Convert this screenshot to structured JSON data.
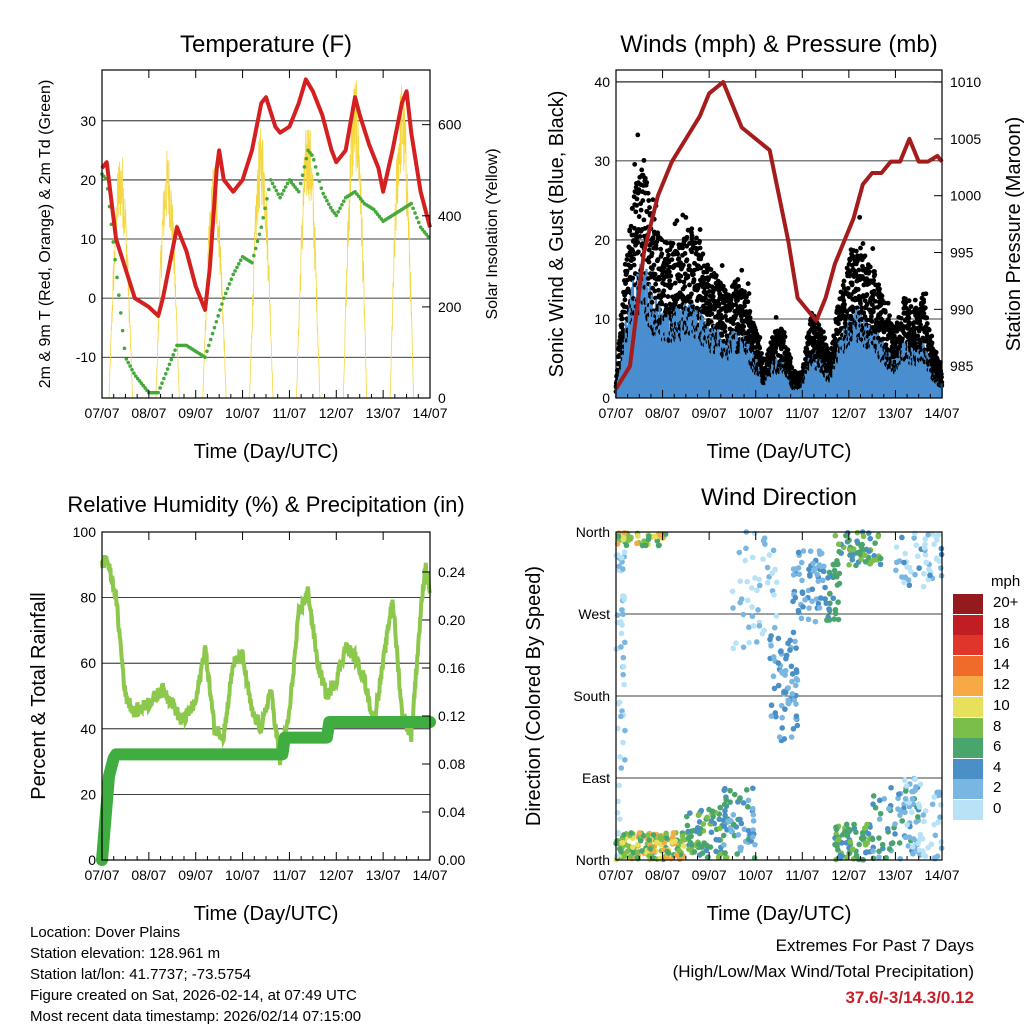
{
  "footer": {
    "location": "Location: Dover Plains",
    "elevation": "Station elevation: 128.961 m",
    "latlon": "Station lat/lon: 41.7737; -73.5754",
    "created": "Figure created on Sat, 2026-02-14, at 07:49 UTC",
    "recent": "Most recent data timestamp: 2026/02/14 07:15:00"
  },
  "extremes": {
    "title": "Extremes For Past 7 Days",
    "subtitle": "(High/Low/Max Wind/Total Precipitation)",
    "value": "37.6/-3/14.3/0.12"
  },
  "legend": {
    "unit": "mph",
    "colors": [
      "#951a1d",
      "#c01e23",
      "#e0352b",
      "#f06a2a",
      "#f7a945",
      "#e6e05a",
      "#7bbf4a",
      "#4aa56c",
      "#4a8fc6",
      "#7ab6e2",
      "#b8e2f6"
    ],
    "labels": [
      "20+",
      "18",
      "16",
      "14",
      "12",
      "10",
      "8",
      "6",
      "4",
      "2",
      "0"
    ]
  },
  "chart_data": [
    {
      "type": "line",
      "title": "Temperature (F)",
      "xlabel": "Time (Day/UTC)",
      "ylabel": "2m & 9m T (Red, Orange) & 2m Td (Green)",
      "y2label": "Solar Insolation (Yellow)",
      "xticks": [
        "07/07",
        "08/07",
        "09/07",
        "10/07",
        "11/07",
        "12/07",
        "13/07",
        "14/07"
      ],
      "ylim": [
        -16.9,
        38.6
      ],
      "yticks": [
        -10,
        0,
        10,
        20,
        30
      ],
      "y2lim": [
        0,
        720
      ],
      "y2ticks": [
        0,
        200,
        400,
        600
      ],
      "series": [
        {
          "name": "2m T",
          "color": "#d42020",
          "x": [
            0,
            0.1,
            0.3,
            0.5,
            0.7,
            1,
            1.2,
            1.3,
            1.5,
            1.6,
            1.8,
            2,
            2.1,
            2.2,
            2.3,
            2.45,
            2.5,
            2.6,
            2.8,
            3,
            3.2,
            3.4,
            3.5,
            3.7,
            3.8,
            4,
            4.2,
            4.35,
            4.5,
            4.7,
            4.9,
            5,
            5.2,
            5.4,
            5.5,
            5.7,
            5.9,
            6,
            6.2,
            6.4,
            6.5,
            6.6,
            6.8,
            7
          ],
          "y": [
            22,
            23,
            10,
            5,
            0,
            -1.5,
            -3,
            0,
            8,
            12,
            8,
            2,
            0,
            -2,
            5,
            22,
            25,
            20,
            18,
            20,
            25,
            33,
            34,
            29,
            28,
            29,
            33,
            37,
            35,
            31,
            25,
            23,
            25,
            34,
            31,
            26,
            22,
            18,
            25,
            33,
            35,
            28,
            18,
            12
          ]
        },
        {
          "name": "2m Td",
          "color": "#44a83a",
          "x": [
            0,
            0.1,
            0.3,
            0.5,
            0.7,
            1,
            1.2,
            1.4,
            1.6,
            1.8,
            2,
            2.2,
            2.4,
            2.6,
            2.8,
            3,
            3.2,
            3.4,
            3.6,
            3.8,
            4,
            4.2,
            4.4,
            4.5,
            4.7,
            4.9,
            5,
            5.2,
            5.4,
            5.6,
            5.8,
            6,
            6.2,
            6.4,
            6.6,
            6.8,
            7
          ],
          "y": [
            21,
            20,
            5,
            -10,
            -13,
            -16,
            -16,
            -12,
            -8,
            -8,
            -9,
            -10,
            -5,
            0,
            4,
            7,
            6,
            12,
            20,
            17,
            20,
            18,
            25,
            24,
            18,
            15,
            14,
            17,
            18,
            16,
            15,
            13,
            14,
            15,
            16,
            12,
            10
          ]
        },
        {
          "name": "Solar Insolation",
          "color": "#f5d742",
          "peak_day_fraction": 0.4,
          "daily_peaks": [
            550,
            550,
            520,
            600,
            620,
            710,
            700
          ]
        }
      ]
    },
    {
      "type": "scatter",
      "title": "Winds (mph) & Pressure (mb)",
      "xlabel": "Time (Day/UTC)",
      "ylabel": "Sonic Wind & Gust (Blue, Black)",
      "y2label": "Station Pressure (Maroon)",
      "xticks": [
        "07/07",
        "08/07",
        "09/07",
        "10/07",
        "11/07",
        "12/07",
        "13/07",
        "14/07"
      ],
      "ylim": [
        0,
        41.5
      ],
      "yticks": [
        0,
        10,
        20,
        30,
        40
      ],
      "y2lim": [
        982.2,
        1011.06
      ],
      "y2ticks": [
        985,
        990,
        995,
        1000,
        1005,
        1010
      ],
      "series": [
        {
          "name": "Gust",
          "color": "#000000",
          "x": [
            0,
            0.2,
            0.4,
            0.6,
            0.8,
            1,
            1.2,
            1.4,
            1.6,
            1.8,
            2,
            2.2,
            2.4,
            2.6,
            2.8,
            3,
            3.2,
            3.4,
            3.6,
            3.8,
            4,
            4.2,
            4.4,
            4.6,
            4.8,
            5,
            5.2,
            5.4,
            5.6,
            5.8,
            6,
            6.2,
            6.4,
            6.6,
            6.8,
            7
          ],
          "y": [
            2,
            15,
            25,
            28,
            20,
            18,
            18,
            18,
            20,
            18,
            15,
            14,
            12,
            14,
            12,
            8,
            4,
            8,
            8,
            3,
            3,
            10,
            8,
            5,
            12,
            16,
            18,
            16,
            14,
            10,
            8,
            12,
            10,
            12,
            6,
            3
          ]
        },
        {
          "name": "Sonic Wind",
          "color": "#4a8fd0",
          "ratio_to_gust": 0.5
        },
        {
          "name": "Station Pressure",
          "color": "#a51c1c",
          "x": [
            0,
            0.3,
            0.6,
            0.9,
            1.2,
            1.5,
            1.8,
            2,
            2.3,
            2.5,
            2.7,
            3,
            3.3,
            3.5,
            3.7,
            3.9,
            4.1,
            4.3,
            4.5,
            4.7,
            4.9,
            5.1,
            5.3,
            5.5,
            5.7,
            5.9,
            6.1,
            6.3,
            6.5,
            6.7,
            6.9,
            7
          ],
          "y": [
            983,
            985,
            995,
            1000,
            1003,
            1005,
            1007,
            1009,
            1010,
            1008,
            1006,
            1005,
            1004,
            1000,
            996,
            991,
            990,
            989,
            991,
            994,
            996,
            998,
            1001,
            1002,
            1002,
            1003,
            1003,
            1005,
            1003,
            1003,
            1003.5,
            1003
          ]
        }
      ]
    },
    {
      "type": "line",
      "title": "Relative Humidity (%) & Precipitation (in)",
      "xlabel": "Time (Day/UTC)",
      "ylabel": "Percent & Total Rainfall",
      "xticks": [
        "07/07",
        "08/07",
        "09/07",
        "10/07",
        "11/07",
        "12/07",
        "13/07",
        "14/07"
      ],
      "ylim": [
        0,
        100
      ],
      "yticks": [
        0,
        20,
        40,
        60,
        80,
        100
      ],
      "y2lim": [
        0,
        0.2733
      ],
      "y2ticks": [
        "0.00",
        "0.04",
        "0.08",
        "0.12",
        "0.16",
        "0.20",
        "0.24"
      ],
      "series": [
        {
          "name": "Relative Humidity",
          "color": "#8cc84b",
          "x": [
            0,
            0.1,
            0.3,
            0.5,
            0.7,
            1,
            1.3,
            1.5,
            1.7,
            2,
            2.2,
            2.4,
            2.6,
            2.8,
            3,
            3.2,
            3.4,
            3.6,
            3.8,
            4,
            4.2,
            4.4,
            4.6,
            4.8,
            5,
            5.2,
            5.4,
            5.6,
            5.8,
            6,
            6.2,
            6.4,
            6.6,
            6.8,
            6.9,
            7
          ],
          "y": [
            90,
            92,
            80,
            50,
            45,
            48,
            52,
            48,
            42,
            48,
            65,
            40,
            38,
            60,
            62,
            45,
            40,
            52,
            30,
            45,
            75,
            82,
            60,
            50,
            55,
            65,
            62,
            55,
            42,
            60,
            80,
            45,
            38,
            75,
            90,
            82
          ]
        },
        {
          "name": "Total Precipitation",
          "color": "#3fad3f",
          "x": [
            0,
            0.15,
            0.25,
            0.3,
            3.85,
            3.9,
            4.8,
            4.85,
            7
          ],
          "y": [
            0,
            0.07,
            0.085,
            0.088,
            0.088,
            0.102,
            0.102,
            0.115,
            0.115
          ]
        }
      ]
    },
    {
      "type": "scatter",
      "title": "Wind Direction",
      "xlabel": "Time (Day/UTC)",
      "ylabel": "Direction (Colored By Speed)",
      "xticks": [
        "07/07",
        "08/07",
        "09/07",
        "10/07",
        "11/07",
        "12/07",
        "13/07",
        "14/07"
      ],
      "ylim": [
        0,
        360
      ],
      "yticks": [
        {
          "v": 0,
          "label": "North"
        },
        {
          "v": 90,
          "label": "East"
        },
        {
          "v": 180,
          "label": "South"
        },
        {
          "v": 270,
          "label": "West"
        },
        {
          "v": 360,
          "label": "North"
        }
      ],
      "clusters": [
        {
          "days": [
            0,
            1.5
          ],
          "dir": [
            0,
            30
          ],
          "speed": [
            6,
            14
          ],
          "n": 160
        },
        {
          "days": [
            0,
            1.1
          ],
          "dir": [
            345,
            360
          ],
          "speed": [
            6,
            14
          ],
          "n": 40
        },
        {
          "days": [
            1.5,
            2.4
          ],
          "dir": [
            0,
            60
          ],
          "speed": [
            4,
            10
          ],
          "n": 80
        },
        {
          "days": [
            2.3,
            3.0
          ],
          "dir": [
            0,
            80
          ],
          "speed": [
            2,
            8
          ],
          "n": 60
        },
        {
          "days": [
            2.5,
            3.5
          ],
          "dir": [
            230,
            360
          ],
          "speed": [
            0,
            4
          ],
          "n": 50
        },
        {
          "days": [
            3.3,
            3.9
          ],
          "dir": [
            130,
            250
          ],
          "speed": [
            2,
            6
          ],
          "n": 70
        },
        {
          "days": [
            3.8,
            4.5
          ],
          "dir": [
            260,
            340
          ],
          "speed": [
            2,
            6
          ],
          "n": 60
        },
        {
          "days": [
            4.5,
            4.8
          ],
          "dir": [
            260,
            330
          ],
          "speed": [
            5,
            8
          ],
          "n": 30
        },
        {
          "days": [
            4.7,
            5.5
          ],
          "dir": [
            0,
            40
          ],
          "speed": [
            4,
            10
          ],
          "n": 70
        },
        {
          "days": [
            4.7,
            5.7
          ],
          "dir": [
            320,
            360
          ],
          "speed": [
            4,
            10
          ],
          "n": 60
        },
        {
          "days": [
            5.5,
            6.5
          ],
          "dir": [
            0,
            80
          ],
          "speed": [
            2,
            8
          ],
          "n": 60
        },
        {
          "days": [
            6.2,
            7.0
          ],
          "dir": [
            0,
            90
          ],
          "speed": [
            0,
            4
          ],
          "n": 60
        },
        {
          "days": [
            6.0,
            7.0
          ],
          "dir": [
            300,
            360
          ],
          "speed": [
            0,
            5
          ],
          "n": 50
        },
        {
          "days": [
            0,
            0.1
          ],
          "dir": [
            0,
            360
          ],
          "speed": [
            0,
            3
          ],
          "n": 20
        },
        {
          "days": [
            0.1,
            0.2
          ],
          "dir": [
            100,
            340
          ],
          "speed": [
            1,
            4
          ],
          "n": 30
        }
      ]
    }
  ]
}
